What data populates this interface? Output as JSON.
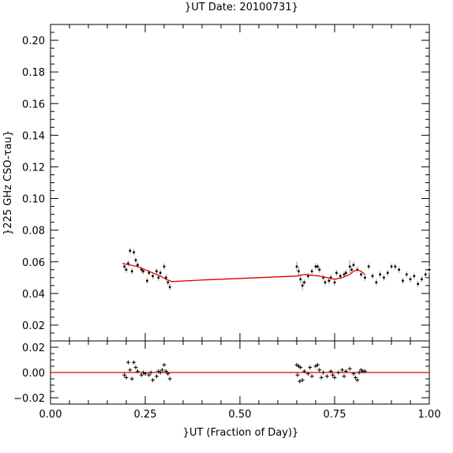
{
  "chart_data": [
    {
      "type": "scatter",
      "panel": "main",
      "title": "}UT Date: 20100731}",
      "ylabel": "}225 GHz CSO-τau}",
      "xlim": [
        0,
        1
      ],
      "ylim": [
        0.01,
        0.21
      ],
      "yticks": [
        "0.02",
        "0.04",
        "0.06",
        "0.08",
        "0.10",
        "0.12",
        "0.14",
        "0.16",
        "0.18",
        "0.20"
      ],
      "ytick_values": [
        0.02,
        0.04,
        0.06,
        0.08,
        0.1,
        0.12,
        0.14,
        0.16,
        0.18,
        0.2
      ],
      "series": [
        {
          "kind": "points",
          "x": [
            0.195,
            0.2,
            0.205,
            0.21,
            0.215,
            0.22,
            0.225,
            0.23,
            0.24,
            0.245,
            0.255,
            0.26,
            0.27,
            0.28,
            0.285,
            0.29,
            0.3,
            0.305,
            0.31,
            0.315,
            0.65,
            0.655,
            0.66,
            0.665,
            0.67,
            0.68,
            0.69,
            0.7,
            0.705,
            0.71,
            0.72,
            0.725,
            0.735,
            0.74,
            0.75,
            0.755,
            0.765,
            0.775,
            0.78,
            0.79,
            0.795,
            0.8,
            0.81,
            0.82,
            0.83,
            0.84,
            0.85,
            0.86,
            0.87,
            0.88,
            0.89,
            0.9,
            0.91,
            0.92,
            0.93,
            0.94,
            0.95,
            0.96,
            0.97,
            0.98,
            0.99,
            1.0
          ],
          "y": [
            0.057,
            0.055,
            0.059,
            0.067,
            0.054,
            0.066,
            0.061,
            0.058,
            0.055,
            0.054,
            0.048,
            0.053,
            0.051,
            0.054,
            0.05,
            0.053,
            0.057,
            0.05,
            0.047,
            0.044,
            0.057,
            0.054,
            0.049,
            0.045,
            0.047,
            0.051,
            0.054,
            0.057,
            0.057,
            0.055,
            0.05,
            0.047,
            0.048,
            0.05,
            0.047,
            0.053,
            0.051,
            0.052,
            0.053,
            0.057,
            0.055,
            0.058,
            0.055,
            0.052,
            0.05,
            0.057,
            0.051,
            0.047,
            0.052,
            0.05,
            0.053,
            0.057,
            0.057,
            0.055,
            0.048,
            0.052,
            0.049,
            0.051,
            0.046,
            0.049,
            0.052,
            0.055
          ],
          "yerr": [
            0.002,
            0.002,
            0.002,
            0.002,
            0.002,
            0.002,
            0.002,
            0.002,
            0.002,
            0.002,
            0.002,
            0.002,
            0.002,
            0.002,
            0.002,
            0.002,
            0.002,
            0.002,
            0.002,
            0.002,
            0.003,
            0.003,
            0.003,
            0.003,
            0.002,
            0.002,
            0.002,
            0.002,
            0.002,
            0.002,
            0.002,
            0.002,
            0.002,
            0.002,
            0.002,
            0.002,
            0.002,
            0.002,
            0.002,
            0.004,
            0.002,
            0.002,
            0.002,
            0.002,
            0.002,
            0.002,
            0.002,
            0.002,
            0.002,
            0.002,
            0.002,
            0.002,
            0.002,
            0.002,
            0.002,
            0.002,
            0.002,
            0.002,
            0.002,
            0.002,
            0.002,
            0.002
          ]
        },
        {
          "kind": "fit-line",
          "color": "#e00000",
          "x": [
            0.19,
            0.21,
            0.23,
            0.25,
            0.27,
            0.29,
            0.305,
            0.32,
            0.4,
            0.5,
            0.6,
            0.65,
            0.67,
            0.69,
            0.71,
            0.73,
            0.75,
            0.77,
            0.79,
            0.8,
            0.81,
            0.82,
            0.83
          ],
          "y": [
            0.059,
            0.058,
            0.057,
            0.055,
            0.053,
            0.051,
            0.049,
            0.0475,
            0.0485,
            0.0495,
            0.0505,
            0.051,
            0.052,
            0.0515,
            0.051,
            0.05,
            0.049,
            0.05,
            0.052,
            0.054,
            0.055,
            0.054,
            0.052
          ]
        }
      ]
    },
    {
      "type": "scatter",
      "panel": "residuals",
      "xlabel": "}UT (Fraction of Day)}",
      "xlim": [
        0,
        1
      ],
      "ylim": [
        -0.025,
        0.025
      ],
      "xticks": [
        "0.00",
        "0.25",
        "0.50",
        "0.75",
        "1.00"
      ],
      "xtick_values": [
        0,
        0.25,
        0.5,
        0.75,
        1.0
      ],
      "yticks": [
        "0.02",
        "0.00",
        "−0.02"
      ],
      "ytick_values": [
        0.02,
        0.0,
        -0.02
      ],
      "zero_line_color": "#e00000",
      "series": [
        {
          "kind": "plus-markers",
          "x": [
            0.195,
            0.2,
            0.205,
            0.21,
            0.215,
            0.22,
            0.225,
            0.23,
            0.24,
            0.245,
            0.25,
            0.26,
            0.265,
            0.27,
            0.28,
            0.285,
            0.29,
            0.295,
            0.3,
            0.305,
            0.31,
            0.315,
            0.65,
            0.652,
            0.655,
            0.658,
            0.66,
            0.665,
            0.67,
            0.68,
            0.685,
            0.69,
            0.7,
            0.705,
            0.71,
            0.715,
            0.72,
            0.73,
            0.74,
            0.745,
            0.75,
            0.76,
            0.77,
            0.775,
            0.78,
            0.79,
            0.8,
            0.805,
            0.81,
            0.815,
            0.82,
            0.825,
            0.83
          ],
          "y": [
            -0.002,
            -0.004,
            0.008,
            0.002,
            -0.005,
            0.008,
            0.004,
            0.001,
            -0.002,
            0.0,
            -0.001,
            -0.002,
            0.0,
            -0.006,
            -0.003,
            0.001,
            0.0,
            0.002,
            0.006,
            0.001,
            -0.001,
            -0.005,
            0.006,
            -0.002,
            0.005,
            -0.007,
            0.004,
            -0.006,
            0.001,
            -0.001,
            0.004,
            -0.003,
            0.005,
            0.006,
            0.002,
            -0.004,
            0.0,
            -0.003,
            0.001,
            -0.002,
            -0.004,
            0.0,
            0.002,
            -0.003,
            0.001,
            0.003,
            -0.001,
            -0.004,
            -0.006,
            0.0,
            0.002,
            0.001,
            0.001
          ]
        }
      ]
    }
  ]
}
